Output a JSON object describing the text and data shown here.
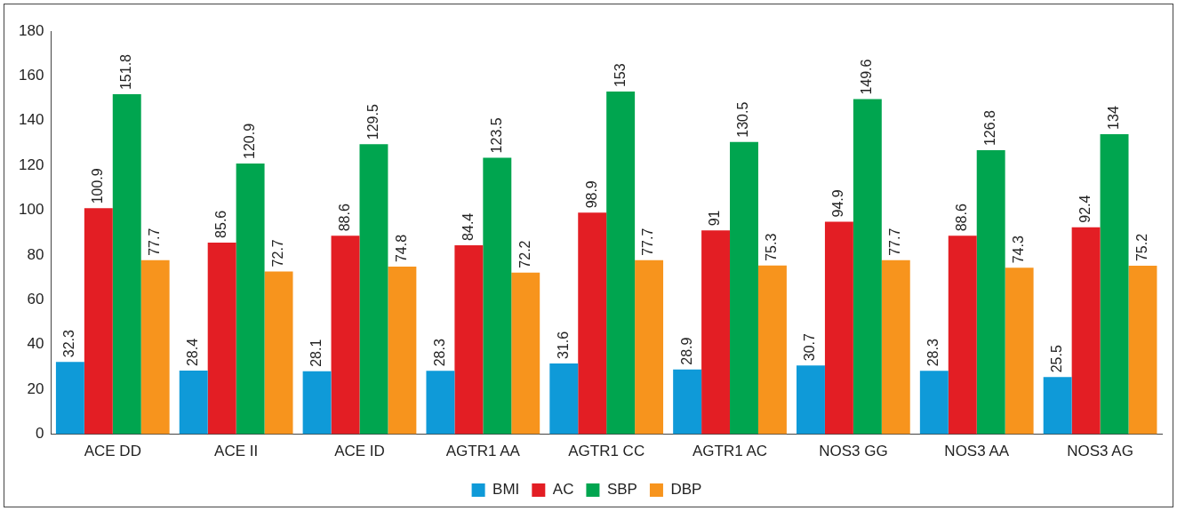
{
  "chart_data": {
    "type": "bar",
    "categories": [
      "ACE DD",
      "ACE II",
      "ACE ID",
      "AGTR1 AA",
      "AGTR1 CC",
      "AGTR1 AC",
      "NOS3 GG",
      "NOS3 AA",
      "NOS3 AG"
    ],
    "series": [
      {
        "name": "BMI",
        "color": "#0f9ad8",
        "values": [
          32.3,
          28.4,
          28.1,
          28.3,
          31.6,
          28.9,
          30.7,
          28.3,
          25.5
        ]
      },
      {
        "name": "AC",
        "color": "#e31e24",
        "values": [
          100.9,
          85.6,
          88.6,
          84.4,
          98.9,
          91,
          94.9,
          88.6,
          92.4
        ]
      },
      {
        "name": "SBP",
        "color": "#00a54f",
        "values": [
          151.8,
          120.9,
          129.5,
          123.5,
          153,
          130.5,
          149.6,
          126.8,
          134
        ]
      },
      {
        "name": "DBP",
        "color": "#f7941d",
        "values": [
          77.7,
          72.7,
          74.8,
          72.2,
          77.7,
          75.3,
          77.7,
          74.3,
          75.2
        ]
      }
    ],
    "ylim": [
      0,
      180
    ],
    "yticks": [
      0,
      20,
      40,
      60,
      80,
      100,
      120,
      140,
      160,
      180
    ],
    "grid": false,
    "legend": "bottom",
    "data_labels": true
  }
}
